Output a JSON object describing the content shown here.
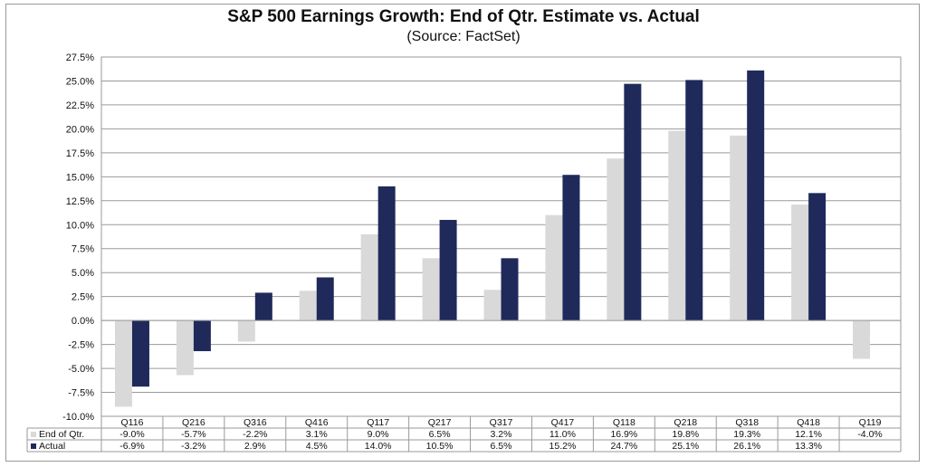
{
  "chart_data": {
    "type": "bar",
    "title": "S&P 500 Earnings Growth: End of Qtr. Estimate vs. Actual",
    "subtitle": "(Source: FactSet)",
    "categories": [
      "Q116",
      "Q216",
      "Q316",
      "Q416",
      "Q117",
      "Q217",
      "Q317",
      "Q417",
      "Q118",
      "Q218",
      "Q318",
      "Q418",
      "Q119"
    ],
    "series": [
      {
        "name": "End of Qtr.",
        "color": "#d9d9d9",
        "values": [
          -9.0,
          -5.7,
          -2.2,
          3.1,
          9.0,
          6.5,
          3.2,
          11.0,
          16.9,
          19.8,
          19.3,
          12.1,
          -4.0
        ],
        "labels": [
          "-9.0%",
          "-5.7%",
          "-2.2%",
          "3.1%",
          "9.0%",
          "6.5%",
          "3.2%",
          "11.0%",
          "16.9%",
          "19.8%",
          "19.3%",
          "12.1%",
          "-4.0%"
        ]
      },
      {
        "name": "Actual",
        "color": "#1f2a5a",
        "values": [
          -6.9,
          -3.2,
          2.9,
          4.5,
          14.0,
          10.5,
          6.5,
          15.2,
          24.7,
          25.1,
          26.1,
          13.3,
          null
        ],
        "labels": [
          "-6.9%",
          "-3.2%",
          "2.9%",
          "4.5%",
          "14.0%",
          "10.5%",
          "6.5%",
          "15.2%",
          "24.7%",
          "25.1%",
          "26.1%",
          "13.3%",
          ""
        ]
      }
    ],
    "ylim": [
      -10.0,
      27.5
    ],
    "ytick_step": 2.5,
    "ytick_labels": [
      "-10.0%",
      "-7.5%",
      "-5.0%",
      "-2.5%",
      "0.0%",
      "2.5%",
      "5.0%",
      "7.5%",
      "10.0%",
      "12.5%",
      "15.0%",
      "17.5%",
      "20.0%",
      "22.5%",
      "25.0%",
      "27.5%"
    ],
    "grid": true,
    "legend": "data-table-below"
  }
}
